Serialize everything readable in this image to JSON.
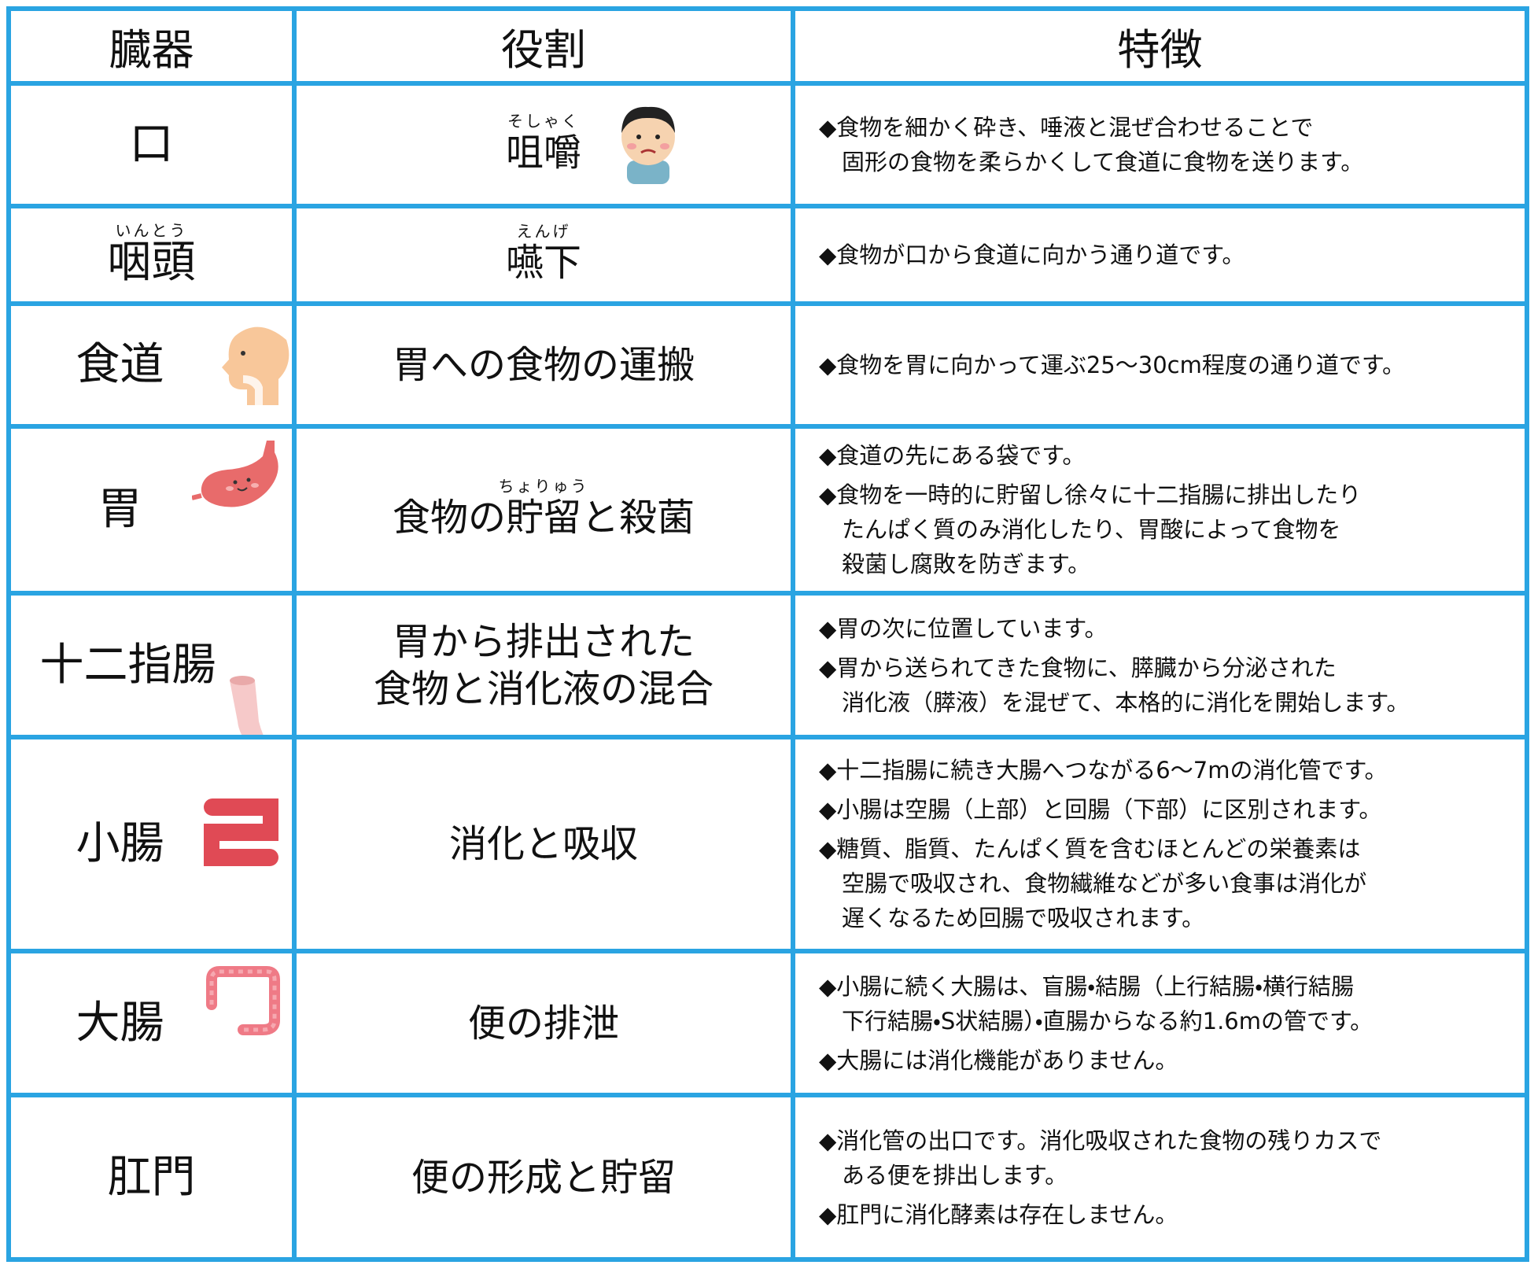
{
  "table": {
    "header": [
      "臓器",
      "役割",
      "特徴"
    ],
    "rows": [
      {
        "organ": "口",
        "role": [
          "咀嚼"
        ],
        "role_ruby": "そしゃく",
        "features": [
          [
            "◆食物を細かく砕き、唾液と混ぜ合わせることで",
            "固形の食物を柔らかくして食道に食物を送ります。"
          ]
        ]
      },
      {
        "organ": "咽頭",
        "organ_ruby": "いんとう",
        "role": [
          "嚥下"
        ],
        "role_ruby": "えんげ",
        "features": [
          [
            "◆食物が口から食道に向かう通り道です。"
          ]
        ]
      },
      {
        "organ": "食道",
        "role": [
          "胃への食物の運搬"
        ],
        "features": [
          [
            "◆食物を胃に向かって運ぶ25～30cm程度の通り道です。"
          ]
        ]
      },
      {
        "organ": "胃",
        "role": [
          "食物の貯留と殺菌"
        ],
        "role_ruby": "ちょりゅう",
        "features": [
          [
            "◆食道の先にある袋です。"
          ],
          [
            "◆食物を一時的に貯留し徐々に十二指腸に排出したり",
            "たんぱく質のみ消化したり、胃酸によって食物を",
            "殺菌し腐敗を防ぎます。"
          ]
        ]
      },
      {
        "organ": "十二指腸",
        "role": [
          "胃から排出された",
          "食物と消化液の混合"
        ],
        "features": [
          [
            "◆胃の次に位置しています。"
          ],
          [
            "◆胃から送られてきた食物に、膵臓から分泌された",
            "消化液（膵液）を混ぜて、本格的に消化を開始します。"
          ]
        ]
      },
      {
        "organ": "小腸",
        "role": [
          "消化と吸収"
        ],
        "features": [
          [
            "◆十二指腸に続き大腸へつながる6～7mの消化管です。"
          ],
          [
            "◆小腸は空腸（上部）と回腸（下部）に区別されます。"
          ],
          [
            "◆糖質、脂質、たんぱく質を含むほとんどの栄養素は",
            "空腸で吸収され、食物繊維などが多い食事は消化が",
            "遅くなるため回腸で吸収されます。"
          ]
        ]
      },
      {
        "organ": "大腸",
        "role": [
          "便の排泄"
        ],
        "features": [
          [
            "◆小腸に続く大腸は、盲腸・結腸（上行結腸・横行結腸",
            "下行結腸・S状結腸）・直腸からなる約1.6mの管です。"
          ],
          [
            "◆大腸には消化機能がありません。"
          ]
        ]
      },
      {
        "organ": "肛門",
        "role": [
          "便の形成と貯留"
        ],
        "features": [
          [
            "◆消化管の出口です。消化吸収された食物の残りカスで",
            "ある便を排出します。"
          ],
          [
            "◆肛門に消化酵素は存在しません。"
          ]
        ]
      }
    ]
  }
}
